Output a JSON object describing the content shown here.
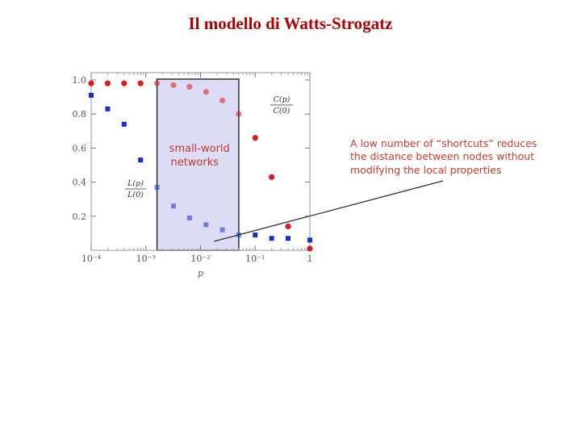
{
  "title": "Il modello di Watts-Strogatz",
  "chart_data": {
    "type": "scatter",
    "xscale": "log",
    "xlim": [
      0.0001,
      1
    ],
    "ylim": [
      0,
      1
    ],
    "xlabel": "p",
    "ylabel": "",
    "x_tick_labels": [
      "10⁻⁴",
      "10⁻³",
      "10⁻²",
      "10⁻¹",
      "1"
    ],
    "y_tick_labels": [
      "1.0",
      "0.8",
      "0.6",
      "0.4",
      "0.2"
    ],
    "y_ticks": [
      1.0,
      0.8,
      0.6,
      0.4,
      0.2
    ],
    "grid": false,
    "series": [
      {
        "name": "C(p)/C(0)",
        "marker": "circle",
        "color": "#e01818",
        "x": [
          0.0001,
          0.0002,
          0.0004,
          0.0008,
          0.0016,
          0.0032,
          0.0063,
          0.0126,
          0.0251,
          0.0501,
          0.1,
          0.2,
          0.4,
          1.0
        ],
        "y": [
          0.98,
          0.98,
          0.98,
          0.98,
          0.98,
          0.97,
          0.96,
          0.93,
          0.88,
          0.8,
          0.66,
          0.43,
          0.14,
          0.01
        ]
      },
      {
        "name": "L(p)/L(0)",
        "marker": "square",
        "color": "#1a2bd6",
        "x": [
          0.0001,
          0.0002,
          0.0004,
          0.0008,
          0.0016,
          0.0032,
          0.0063,
          0.0126,
          0.0251,
          0.0501,
          0.1,
          0.2,
          0.4,
          1.0
        ],
        "y": [
          0.91,
          0.83,
          0.74,
          0.53,
          0.37,
          0.26,
          0.19,
          0.15,
          0.12,
          0.09,
          0.09,
          0.07,
          0.07,
          0.06
        ]
      }
    ],
    "shaded_region": {
      "x": [
        0.0016,
        0.0501
      ],
      "label_line1": "small-world",
      "label_line2": "networks"
    },
    "series_labels": {
      "c_num": "C(p)",
      "c_den": "C(0)",
      "l_num": "L(p)",
      "l_den": "L(0)"
    },
    "annotation": {
      "line1": "A low number of “shortcuts” reduces",
      "line2": "the distance between nodes without",
      "line3": "modifying the local properties"
    }
  },
  "colors": {
    "title": "#b00000",
    "shade_fill": "#dcdcf6",
    "annotation": "#d23a2a"
  }
}
